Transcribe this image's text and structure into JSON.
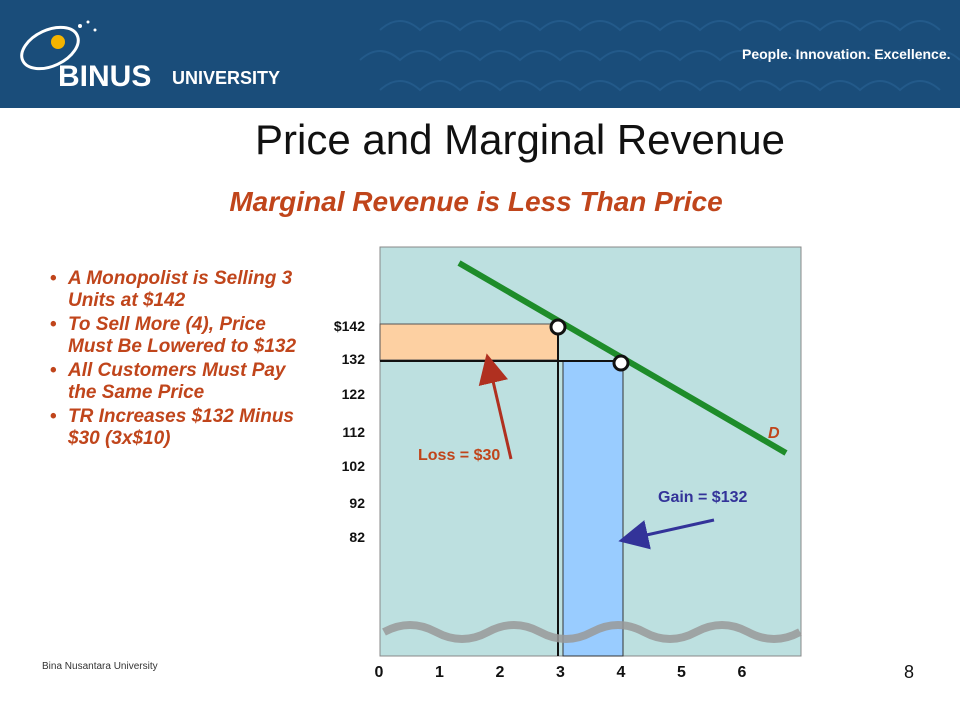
{
  "header": {
    "logo_text": "BINUS",
    "logo_sub": "UNIVERSITY",
    "tagline": "People. Innovation. Excellence."
  },
  "title": "Price and Marginal Revenue",
  "subtitle": "Marginal Revenue is Less Than Price",
  "bullets": [
    "A Monopolist is Selling 3 Units at $142",
    "To Sell More (4), Price Must Be Lowered to $132",
    "All Customers Must Pay the Same Price",
    "TR Increases $132 Minus $30 (3x$10)"
  ],
  "chart_data": {
    "type": "diagram",
    "y_ticks": [
      "$142",
      "132",
      "122",
      "112",
      "102",
      "92",
      "82"
    ],
    "x_ticks": [
      "0",
      "1",
      "2",
      "3",
      "4",
      "5",
      "6"
    ],
    "demand_label": "D",
    "points": [
      {
        "quantity": 3,
        "price": 142
      },
      {
        "quantity": 4,
        "price": 132
      }
    ],
    "loss_label": "Loss = $30",
    "gain_label": "Gain = $132",
    "colors": {
      "plot_bg": "#bde0e0",
      "demand_line": "#1e8c2a",
      "loss_rect": "#fdd0a2",
      "gain_rect": "#99ccff",
      "gain_arrow": "#333399",
      "loss_arrow": "#b03020",
      "label_red": "#c0451b",
      "label_blue": "#333399"
    }
  },
  "footer": {
    "org": "Bina Nusantara University",
    "page": "8"
  }
}
